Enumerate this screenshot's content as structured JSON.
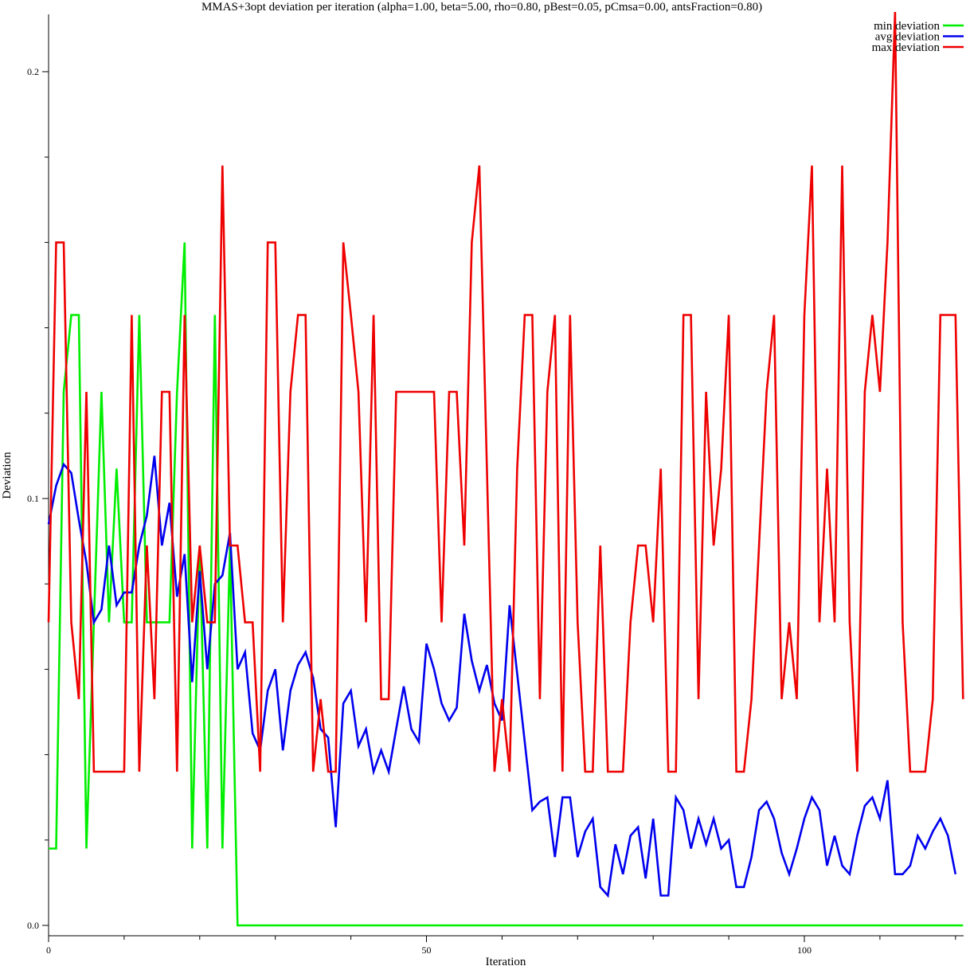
{
  "chart_data": {
    "type": "line",
    "title": "MMAS+3opt deviation per iteration (alpha=1.00, beta=5.00, rho=0.80, pBest=0.05, pCmsa=0.00, antsFraction=0.80)",
    "xlabel": "Iteration",
    "ylabel": "Deviation",
    "xlim": [
      0,
      121
    ],
    "ylim": [
      0,
      0.2
    ],
    "x_tick_labels": [
      "0",
      "50",
      "100"
    ],
    "x_tick_values": [
      0,
      50,
      100
    ],
    "x_minor_ticks": [
      10,
      20,
      30,
      40,
      60,
      70,
      80,
      90,
      110,
      120
    ],
    "y_tick_labels": [
      "0.0",
      "0.1",
      "0.2"
    ],
    "y_tick_values": [
      0,
      0.1,
      0.2
    ],
    "y_minor_ticks": [
      0.02,
      0.04,
      0.06,
      0.08,
      0.12,
      0.14,
      0.16,
      0.18
    ],
    "grid": false,
    "legend_position": "top-right",
    "series": [
      {
        "name": "min deviation",
        "color": "#00ee00",
        "values": [
          0.018,
          0.018,
          0.125,
          0.143,
          0.143,
          0.018,
          0.071,
          0.125,
          0.071,
          0.107,
          0.071,
          0.071,
          0.143,
          0.071,
          0.071,
          0.071,
          0.071,
          0.125,
          0.16,
          0.018,
          0.089,
          0.018,
          0.143,
          0.018,
          0.089,
          0.0,
          0.0,
          0.0,
          0.0,
          0.0,
          0.0,
          0.0,
          0.0,
          0.0,
          0.0,
          0.0,
          0.0,
          0.0,
          0.0,
          0.0,
          0.0,
          0.0,
          0.0,
          0.0,
          0.0,
          0.0,
          0.0,
          0.0,
          0.0,
          0.0,
          0.0,
          0.0,
          0.0,
          0.0,
          0.0,
          0.0,
          0.0,
          0.0,
          0.0,
          0.0,
          0.0,
          0.0,
          0.0,
          0.0,
          0.0,
          0.0,
          0.0,
          0.0,
          0.0,
          0.0,
          0.0,
          0.0,
          0.0,
          0.0,
          0.0,
          0.0,
          0.0,
          0.0,
          0.0,
          0.0,
          0.0,
          0.0,
          0.0,
          0.0,
          0.0,
          0.0,
          0.0,
          0.0,
          0.0,
          0.0,
          0.0,
          0.0,
          0.0,
          0.0,
          0.0,
          0.0,
          0.0,
          0.0,
          0.0,
          0.0,
          0.0,
          0.0,
          0.0,
          0.0,
          0.0,
          0.0,
          0.0,
          0.0,
          0.0,
          0.0,
          0.0,
          0.0,
          0.0,
          0.0,
          0.0,
          0.0,
          0.0,
          0.0,
          0.0,
          0.0,
          0.0,
          0.0
        ]
      },
      {
        "name": "avg deviation",
        "color": "#0000ee",
        "values": [
          0.094,
          0.103,
          0.108,
          0.106,
          0.095,
          0.085,
          0.071,
          0.074,
          0.089,
          0.075,
          0.078,
          0.078,
          0.089,
          0.096,
          0.11,
          0.089,
          0.099,
          0.077,
          0.087,
          0.057,
          0.083,
          0.06,
          0.08,
          0.082,
          0.092,
          0.06,
          0.064,
          0.045,
          0.041,
          0.055,
          0.06,
          0.041,
          0.055,
          0.061,
          0.064,
          0.058,
          0.046,
          0.044,
          0.023,
          0.052,
          0.055,
          0.042,
          0.046,
          0.036,
          0.041,
          0.036,
          0.046,
          0.056,
          0.046,
          0.043,
          0.066,
          0.06,
          0.052,
          0.048,
          0.051,
          0.073,
          0.062,
          0.055,
          0.061,
          0.052,
          0.048,
          0.075,
          0.059,
          0.043,
          0.027,
          0.029,
          0.03,
          0.016,
          0.03,
          0.03,
          0.016,
          0.022,
          0.025,
          0.009,
          0.007,
          0.019,
          0.012,
          0.021,
          0.023,
          0.011,
          0.025,
          0.007,
          0.007,
          0.03,
          0.027,
          0.018,
          0.025,
          0.019,
          0.025,
          0.018,
          0.02,
          0.009,
          0.009,
          0.016,
          0.027,
          0.029,
          0.025,
          0.017,
          0.012,
          0.018,
          0.025,
          0.03,
          0.027,
          0.014,
          0.021,
          0.014,
          0.012,
          0.021,
          0.028,
          0.03,
          0.025,
          0.034,
          0.012,
          0.012,
          0.014,
          0.021,
          0.018,
          0.022,
          0.025,
          0.021,
          0.012
        ]
      },
      {
        "name": "max deviation",
        "color": "#ee0000",
        "values": [
          0.071,
          0.16,
          0.16,
          0.071,
          0.053,
          0.125,
          0.036,
          0.036,
          0.036,
          0.036,
          0.036,
          0.143,
          0.036,
          0.089,
          0.053,
          0.125,
          0.125,
          0.036,
          0.143,
          0.071,
          0.089,
          0.071,
          0.071,
          0.178,
          0.089,
          0.089,
          0.071,
          0.071,
          0.036,
          0.16,
          0.16,
          0.071,
          0.125,
          0.143,
          0.143,
          0.036,
          0.053,
          0.036,
          0.036,
          0.16,
          0.143,
          0.125,
          0.071,
          0.143,
          0.053,
          0.053,
          0.125,
          0.125,
          0.125,
          0.125,
          0.125,
          0.125,
          0.071,
          0.125,
          0.125,
          0.089,
          0.16,
          0.178,
          0.107,
          0.036,
          0.053,
          0.036,
          0.107,
          0.143,
          0.143,
          0.053,
          0.125,
          0.143,
          0.036,
          0.143,
          0.071,
          0.036,
          0.036,
          0.089,
          0.036,
          0.036,
          0.036,
          0.071,
          0.089,
          0.089,
          0.071,
          0.107,
          0.036,
          0.036,
          0.143,
          0.143,
          0.053,
          0.125,
          0.089,
          0.107,
          0.143,
          0.036,
          0.036,
          0.053,
          0.089,
          0.125,
          0.143,
          0.053,
          0.071,
          0.053,
          0.143,
          0.178,
          0.071,
          0.107,
          0.071,
          0.178,
          0.071,
          0.036,
          0.125,
          0.143,
          0.125,
          0.16,
          0.214,
          0.071,
          0.036,
          0.036,
          0.036,
          0.053,
          0.143,
          0.143,
          0.143,
          0.053
        ]
      }
    ]
  }
}
